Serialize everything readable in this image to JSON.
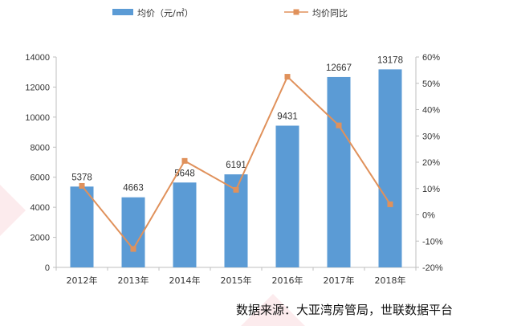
{
  "chart_data": {
    "type": "bar+line",
    "categories": [
      "2012年",
      "2013年",
      "2014年",
      "2015年",
      "2016年",
      "2017年",
      "2018年"
    ],
    "series": [
      {
        "name": "均价（元/㎡）",
        "type": "bar",
        "axis": "left",
        "color": "#5b9bd5",
        "values": [
          5378,
          4663,
          5648,
          6191,
          9431,
          12667,
          13178
        ]
      },
      {
        "name": "均价同比",
        "type": "line",
        "axis": "right",
        "color": "#e0915b",
        "values": [
          0.11,
          -0.13,
          0.205,
          0.095,
          0.525,
          0.34,
          0.04
        ]
      }
    ],
    "data_labels": [
      "5378",
      "4663",
      "5648",
      "6191",
      "9431",
      "12667",
      "13178"
    ],
    "y_left": {
      "min": 0,
      "max": 14000,
      "step": 2000,
      "ticks": [
        "0",
        "2000",
        "4000",
        "6000",
        "8000",
        "10000",
        "12000",
        "14000"
      ]
    },
    "y_right": {
      "min": -0.2,
      "max": 0.6,
      "step": 0.1,
      "ticks": [
        "-20%",
        "-10%",
        "0%",
        "10%",
        "20%",
        "30%",
        "40%",
        "50%",
        "60%"
      ]
    },
    "legend_position": "top",
    "grid": false
  },
  "source_text": "数据来源：大亚湾房管局，世联数据平台"
}
